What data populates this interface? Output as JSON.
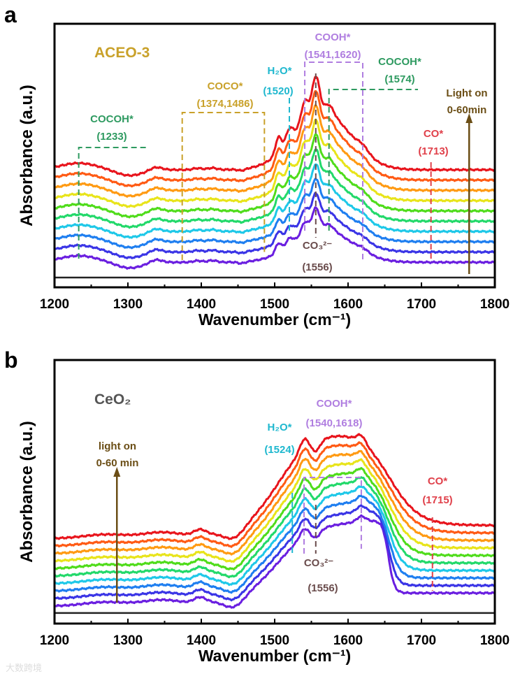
{
  "chart_data": [
    {
      "type": "line",
      "panel_letter": "a",
      "sample_label": "ACEO-3",
      "xlabel": "Wavenumber (cm⁻¹)",
      "ylabel": "Absorbance (a.u.)",
      "xlim": [
        1200,
        1800
      ],
      "ylim": [
        0,
        10
      ],
      "xticks": [
        "1200",
        "1300",
        "1400",
        "1500",
        "1600",
        "1700",
        "1800"
      ],
      "grid": false,
      "series_note": "10 spectra, light on 0-60 min, violet (bottom) to red (top)",
      "series_colors": [
        "#6a1ee0",
        "#3a34e6",
        "#1e7ef0",
        "#1ec8e8",
        "#22d96a",
        "#4fdc1a",
        "#e8e41a",
        "#ff9a12",
        "#ff5a14",
        "#e8141c"
      ],
      "baseline_start": 0.95,
      "baseline_step": 0.39,
      "amp_start": 2.33,
      "amp_step": 0.186,
      "reference_level": 0.37,
      "peaks_wavenumber": [
        1233,
        1374,
        1486,
        1505,
        1520,
        1541,
        1556,
        1574,
        1620,
        1713
      ],
      "annotations": {
        "cocoh1": {
          "name": "COCOH*",
          "value": "(1233)",
          "color": "#2e9a60"
        },
        "coco": {
          "name": "COCO*",
          "value": "(1374,1486)",
          "color": "#c9a12a"
        },
        "h2o": {
          "name": "H₂O*",
          "value": "(1520)",
          "color": "#1fb8cf"
        },
        "cooh": {
          "name": "COOH*",
          "value": "(1541,1620)",
          "color": "#b07ee0"
        },
        "cocoh2": {
          "name": "COCOH*",
          "value": "(1574)",
          "color": "#2e9a60"
        },
        "co": {
          "name": "CO*",
          "value": "(1713)",
          "color": "#e0404a"
        },
        "co3": {
          "name": "CO₃²⁻",
          "value": "(1556)",
          "color": "#6a4c4c"
        },
        "light1": "Light on",
        "light2": "0-60min",
        "arrow_color": "#6b4e16",
        "sample_color": "#c9a12a"
      }
    },
    {
      "type": "line",
      "panel_letter": "b",
      "sample_label": "CeO₂",
      "xlabel": "Wavenumber (cm⁻¹)",
      "ylabel": "Absorbance (a.u.)",
      "xlim": [
        1200,
        1800
      ],
      "ylim": [
        0,
        10
      ],
      "xticks": [
        "1200",
        "1300",
        "1400",
        "1500",
        "1600",
        "1700",
        "1800"
      ],
      "grid": false,
      "series_note": "10 spectra, light on 0-60 min, violet (bottom) to red (top)",
      "series_colors": [
        "#6a1ee0",
        "#3a34e6",
        "#1e7ef0",
        "#1ec8e8",
        "#22d96a",
        "#4fdc1a",
        "#e8e41a",
        "#ff9a12",
        "#ff5a14",
        "#e8141c"
      ],
      "baseline_start": 0.66,
      "baseline_step": 0.285,
      "amp_start": 2.6,
      "amp_step": 0.1,
      "reference_level": 0.4,
      "peaks_wavenumber": [
        1398,
        1445,
        1524,
        1540,
        1556,
        1618,
        1715
      ],
      "annotations": {
        "h2o": {
          "name": "H₂O*",
          "value": "(1524)",
          "color": "#1fb8cf"
        },
        "cooh": {
          "name": "COOH*",
          "value": "(1540,1618)",
          "color": "#b07ee0"
        },
        "co3": {
          "name": "CO₃²⁻",
          "value": "(1556)",
          "color": "#6a4c4c"
        },
        "co": {
          "name": "CO*",
          "value": "(1715)",
          "color": "#e0404a"
        },
        "light1": "light on",
        "light2": "0-60 min",
        "arrow_color": "#6b4e16",
        "sample_color": "#555555"
      }
    }
  ],
  "watermark": "大数跨境"
}
